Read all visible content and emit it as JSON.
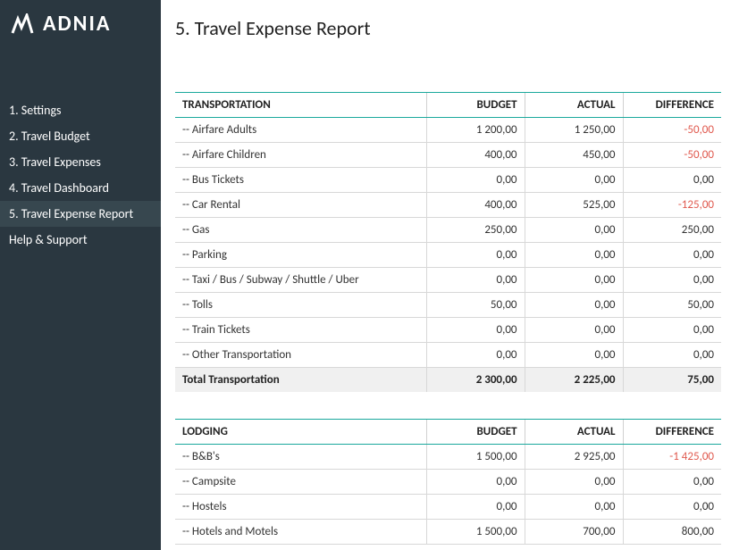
{
  "brand": "ADNIA",
  "page_title": "5. Travel Expense Report",
  "nav": [
    {
      "label": "1. Settings",
      "active": false
    },
    {
      "label": "2. Travel Budget",
      "active": false
    },
    {
      "label": "3. Travel Expenses",
      "active": false
    },
    {
      "label": "4. Travel Dashboard",
      "active": false
    },
    {
      "label": "5. Travel Expense Report",
      "active": true
    },
    {
      "label": "Help & Support",
      "active": false
    }
  ],
  "columns": {
    "budget": "BUDGET",
    "actual": "ACTUAL",
    "difference": "DIFFERENCE"
  },
  "sections": [
    {
      "heading": "TRANSPORTATION",
      "rows": [
        {
          "name": "-- Airfare Adults",
          "budget": "1 200,00",
          "actual": "1 250,00",
          "diff": "-50,00",
          "neg": true
        },
        {
          "name": "-- Airfare Children",
          "budget": "400,00",
          "actual": "450,00",
          "diff": "-50,00",
          "neg": true
        },
        {
          "name": "-- Bus Tickets",
          "budget": "0,00",
          "actual": "0,00",
          "diff": "0,00",
          "neg": false
        },
        {
          "name": "-- Car Rental",
          "budget": "400,00",
          "actual": "525,00",
          "diff": "-125,00",
          "neg": true
        },
        {
          "name": "-- Gas",
          "budget": "250,00",
          "actual": "0,00",
          "diff": "250,00",
          "neg": false
        },
        {
          "name": "-- Parking",
          "budget": "0,00",
          "actual": "0,00",
          "diff": "0,00",
          "neg": false
        },
        {
          "name": "-- Taxi / Bus / Subway / Shuttle / Uber",
          "budget": "0,00",
          "actual": "0,00",
          "diff": "0,00",
          "neg": false
        },
        {
          "name": "-- Tolls",
          "budget": "50,00",
          "actual": "0,00",
          "diff": "50,00",
          "neg": false
        },
        {
          "name": "-- Train Tickets",
          "budget": "0,00",
          "actual": "0,00",
          "diff": "0,00",
          "neg": false
        },
        {
          "name": "-- Other Transportation",
          "budget": "0,00",
          "actual": "0,00",
          "diff": "0,00",
          "neg": false
        }
      ],
      "total": {
        "name": "Total Transportation",
        "budget": "2 300,00",
        "actual": "2 225,00",
        "diff": "75,00",
        "neg": false
      }
    },
    {
      "heading": "LODGING",
      "rows": [
        {
          "name": "-- B&B's",
          "budget": "1 500,00",
          "actual": "2 925,00",
          "diff": "-1 425,00",
          "neg": true
        },
        {
          "name": "-- Campsite",
          "budget": "0,00",
          "actual": "0,00",
          "diff": "0,00",
          "neg": false
        },
        {
          "name": "-- Hostels",
          "budget": "0,00",
          "actual": "0,00",
          "diff": "0,00",
          "neg": false
        },
        {
          "name": "-- Hotels and Motels",
          "budget": "1 500,00",
          "actual": "700,00",
          "diff": "800,00",
          "neg": false
        }
      ],
      "total": null
    }
  ],
  "colors": {
    "accent": "#1aa89c",
    "sidebar_bg": "#2a3740",
    "negative": "#e05a4f",
    "total_bg": "#f0f0f0"
  }
}
